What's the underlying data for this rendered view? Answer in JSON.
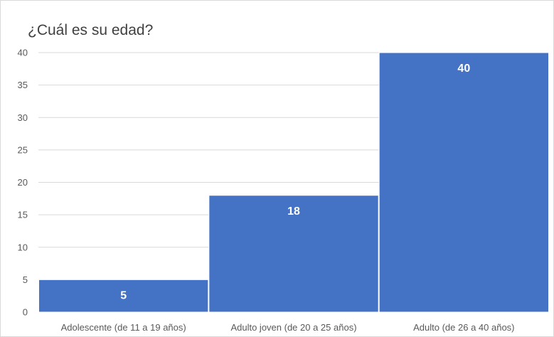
{
  "chart_data": {
    "type": "bar",
    "title": "¿Cuál es su edad?",
    "categories": [
      "Adolescente (de 11 a 19 años)",
      "Adulto joven (de 20 a 25 años)",
      "Adulto (de 26 a 40 años)"
    ],
    "values": [
      5,
      18,
      40
    ],
    "data_labels": [
      "5",
      "18",
      "40"
    ],
    "yticks": [
      0,
      5,
      10,
      15,
      20,
      25,
      30,
      35,
      40
    ],
    "ylim": [
      0,
      40
    ],
    "xlabel": "",
    "ylabel": "",
    "grid": true,
    "legend": "none",
    "colors": {
      "bar": "#4472C4",
      "grid": "#d9d9d9",
      "text": "#595959",
      "title": "#404040"
    }
  }
}
